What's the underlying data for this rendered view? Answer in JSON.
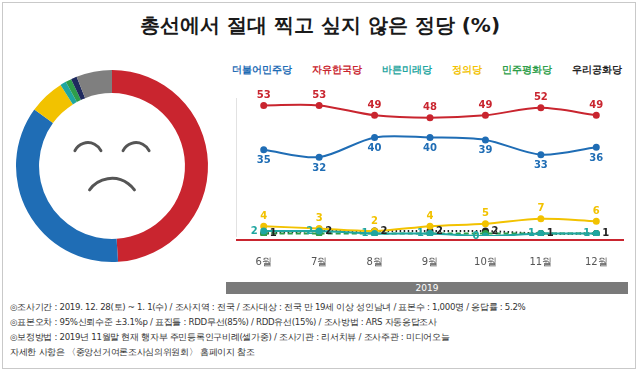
{
  "chart_data": [
    {
      "type": "line",
      "title": "총선에서 절대 찍고 싶지 않은 정당 (%)",
      "categories": [
        "6월",
        "7월",
        "8월",
        "9월",
        "10월",
        "11월",
        "12월"
      ],
      "series": [
        {
          "name": "더불어민주당",
          "color": "#1f6db5",
          "values": [
            35,
            32,
            40,
            40,
            39,
            33,
            36
          ],
          "data_labels": true,
          "marker": "circle",
          "line_style": "solid"
        },
        {
          "name": "자유한국당",
          "color": "#c9252f",
          "values": [
            53,
            53,
            49,
            48,
            49,
            52,
            49
          ],
          "data_labels": true,
          "marker": "circle",
          "line_style": "solid"
        },
        {
          "name": "바른미래당",
          "color": "#1fa6a0",
          "values": [
            2,
            2,
            1,
            1,
            0,
            1,
            1
          ],
          "data_labels": true,
          "marker": "circle",
          "line_style": "solid"
        },
        {
          "name": "정의당",
          "color": "#f2c200",
          "values": [
            4,
            3,
            2,
            4,
            5,
            7,
            6
          ],
          "data_labels": true,
          "marker": "circle",
          "line_style": "solid"
        },
        {
          "name": "민주평화당",
          "color": "#2e9e4a",
          "values": [
            1,
            1,
            1,
            1,
            1,
            1,
            1
          ],
          "data_labels": false,
          "marker": "circle",
          "line_style": "dashed"
        },
        {
          "name": "우리공화당",
          "color": "#222222",
          "values": [
            1,
            2,
            2,
            2,
            2,
            1,
            1
          ],
          "data_labels": true,
          "marker": "circle",
          "line_style": "dotted"
        }
      ],
      "ylim": [
        0,
        56
      ],
      "grid": false,
      "tick_labels": "x",
      "legend": "top"
    },
    {
      "type": "doughnut",
      "categories": [
        "자유한국당",
        "더불어민주당",
        "정의당",
        "바른미래당",
        "민주평화당",
        "우리공화당",
        null
      ],
      "values": [
        49,
        36,
        6,
        1,
        1,
        1,
        6
      ],
      "colors": [
        "#c9252f",
        "#1f6db5",
        "#f2c200",
        "#1fa6a0",
        "#2e9e4a",
        "#1e2a5e",
        "#7f7f7f"
      ],
      "data_labels": false,
      "tick_labels": false
    }
  ],
  "year_label": "2019",
  "footer": [
    "◎조사기간 : 2019. 12. 28(토) ~ 1. 1(수) / 조사지역 : 전국 / 조사대상 : 전국 만 19세 이상 성인남녀 / 표본수 : 1,000명 / 응답률 : 5.2%",
    "◎표본오차 : 95%신뢰수준 ±3.1%p / 표집틀 : RDD무선(85%) / RDD유선(15%) / 조사방법 : ARS 자동응답조사",
    "◎보정방법 : 2019년 11월말 현재 행자부 주민등록인구비례(셀가중) / 조사기관 : 리서치뷰 / 조사주관 : 미디어오늘",
    "자세한 사항은 〈중앙선거여론조사심의위원회〉 홈페이지 참조"
  ]
}
